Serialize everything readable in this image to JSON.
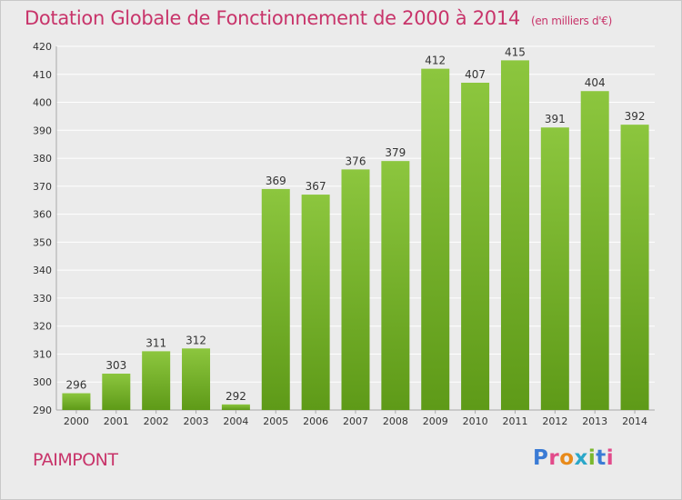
{
  "header": {
    "title": "Dotation Globale de Fonctionnement de 2000 à 2014",
    "unit": "(en milliers d'€)"
  },
  "footer": {
    "place": "PAIMPONT",
    "logo": "Proxiti"
  },
  "colors": {
    "bar_top": "#8cc63e",
    "bar_bottom": "#5e9a18",
    "accent": "#c8346a",
    "grid": "#ffffff",
    "background": "#ebebeb"
  },
  "chart_data": {
    "type": "bar",
    "title": "Dotation Globale de Fonctionnement de 2000 à 2014",
    "subtitle": "(en milliers d'€)",
    "xlabel": "",
    "ylabel": "",
    "categories": [
      "2000",
      "2001",
      "2002",
      "2003",
      "2004",
      "2005",
      "2006",
      "2007",
      "2008",
      "2009",
      "2010",
      "2011",
      "2012",
      "2013",
      "2014"
    ],
    "values": [
      296,
      303,
      311,
      312,
      292,
      369,
      367,
      376,
      379,
      412,
      407,
      415,
      391,
      404,
      392
    ],
    "ylim": [
      290,
      420
    ],
    "yticks": [
      290,
      300,
      310,
      320,
      330,
      340,
      350,
      360,
      370,
      380,
      390,
      400,
      410,
      420
    ],
    "grid": true,
    "data_labels": true
  }
}
